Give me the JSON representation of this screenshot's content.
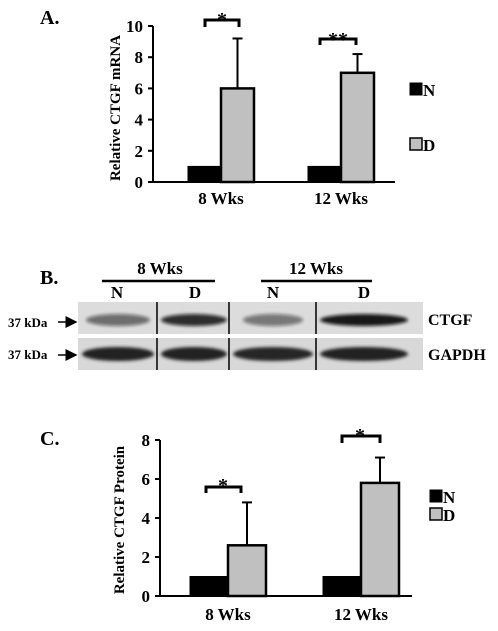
{
  "panel_a": {
    "label": "A.",
    "ylabel": "Relative CTGF mRNA",
    "yticks": [
      "0",
      "2",
      "4",
      "6",
      "8",
      "10"
    ],
    "legend": [
      {
        "label": "N",
        "color": "#000000"
      },
      {
        "label": "D",
        "color": "#c0c0c0"
      }
    ],
    "significance": [
      "*",
      "**"
    ]
  },
  "panel_b": {
    "label": "B.",
    "groups": [
      "8 Wks",
      "12 Wks"
    ],
    "lanes": [
      "N",
      "D",
      "N",
      "D"
    ],
    "markers": [
      "37 kDa",
      "37 kDa"
    ],
    "bands": [
      "CTGF",
      "GAPDH"
    ],
    "ctgf_band_intensity": [
      0.55,
      0.85,
      0.5,
      0.95
    ]
  },
  "panel_c": {
    "label": "C.",
    "ylabel": "Relative CTGF Protein",
    "yticks": [
      "0",
      "2",
      "4",
      "6",
      "8"
    ],
    "legend": [
      {
        "label": "N",
        "color": "#000000"
      },
      {
        "label": "D",
        "color": "#c0c0c0"
      }
    ],
    "significance": [
      "*",
      "*"
    ]
  },
  "chart_data": [
    {
      "type": "bar",
      "title": "",
      "xlabel": "",
      "ylabel": "Relative CTGF mRNA",
      "categories": [
        "8 Wks",
        "12 Wks"
      ],
      "ylim": [
        0,
        10
      ],
      "grid": false,
      "legend_position": "right",
      "series": [
        {
          "name": "N",
          "values": [
            1.0,
            1.0
          ],
          "errors": [
            0,
            0
          ],
          "color": "#000000"
        },
        {
          "name": "D",
          "values": [
            6.0,
            7.0
          ],
          "errors": [
            3.2,
            1.2
          ],
          "color": "#c0c0c0"
        }
      ]
    },
    {
      "type": "bar",
      "title": "",
      "xlabel": "",
      "ylabel": "Relative CTGF Protein",
      "categories": [
        "8 Wks",
        "12 Wks"
      ],
      "ylim": [
        0,
        8
      ],
      "grid": false,
      "legend_position": "right",
      "series": [
        {
          "name": "N",
          "values": [
            1.0,
            1.0
          ],
          "errors": [
            0,
            0
          ],
          "color": "#000000"
        },
        {
          "name": "D",
          "values": [
            2.6,
            5.8
          ],
          "errors": [
            2.2,
            1.3
          ],
          "color": "#c0c0c0"
        }
      ]
    }
  ]
}
